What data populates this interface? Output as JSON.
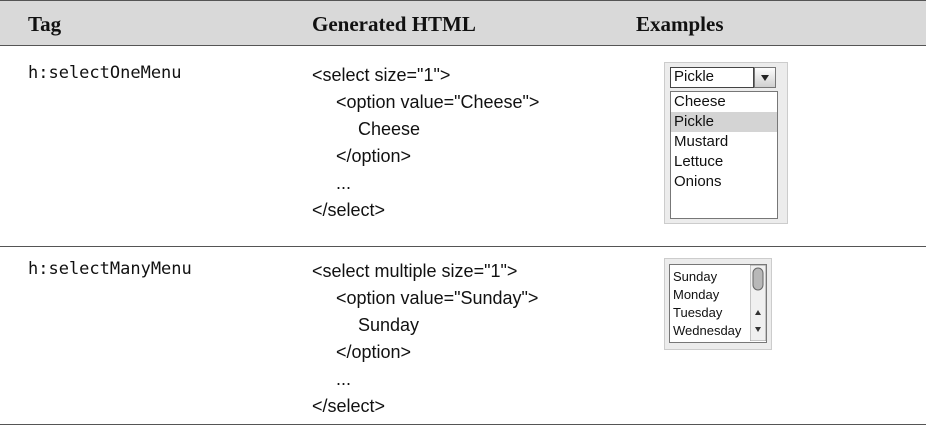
{
  "table": {
    "header": [
      "Tag",
      "Generated HTML",
      "Examples"
    ],
    "rows": [
      {
        "tag": "h:selectOneMenu",
        "code": [
          "<select size=\"1\">",
          "<option value=\"Cheese\">",
          "Cheese",
          "</option>",
          "...",
          "</select>"
        ],
        "example": {
          "selected": "Pickle",
          "options": [
            "Cheese",
            "Pickle",
            "Mustard",
            "Lettuce",
            "Onions"
          ]
        }
      },
      {
        "tag": "h:selectManyMenu",
        "code": [
          "<select multiple size=\"1\">",
          "<option value=\"Sunday\">",
          "Sunday",
          "</option>",
          "...",
          "</select>"
        ],
        "example": {
          "options": [
            "Sunday",
            "Monday",
            "Tuesday",
            "Wednesday"
          ]
        }
      }
    ]
  }
}
